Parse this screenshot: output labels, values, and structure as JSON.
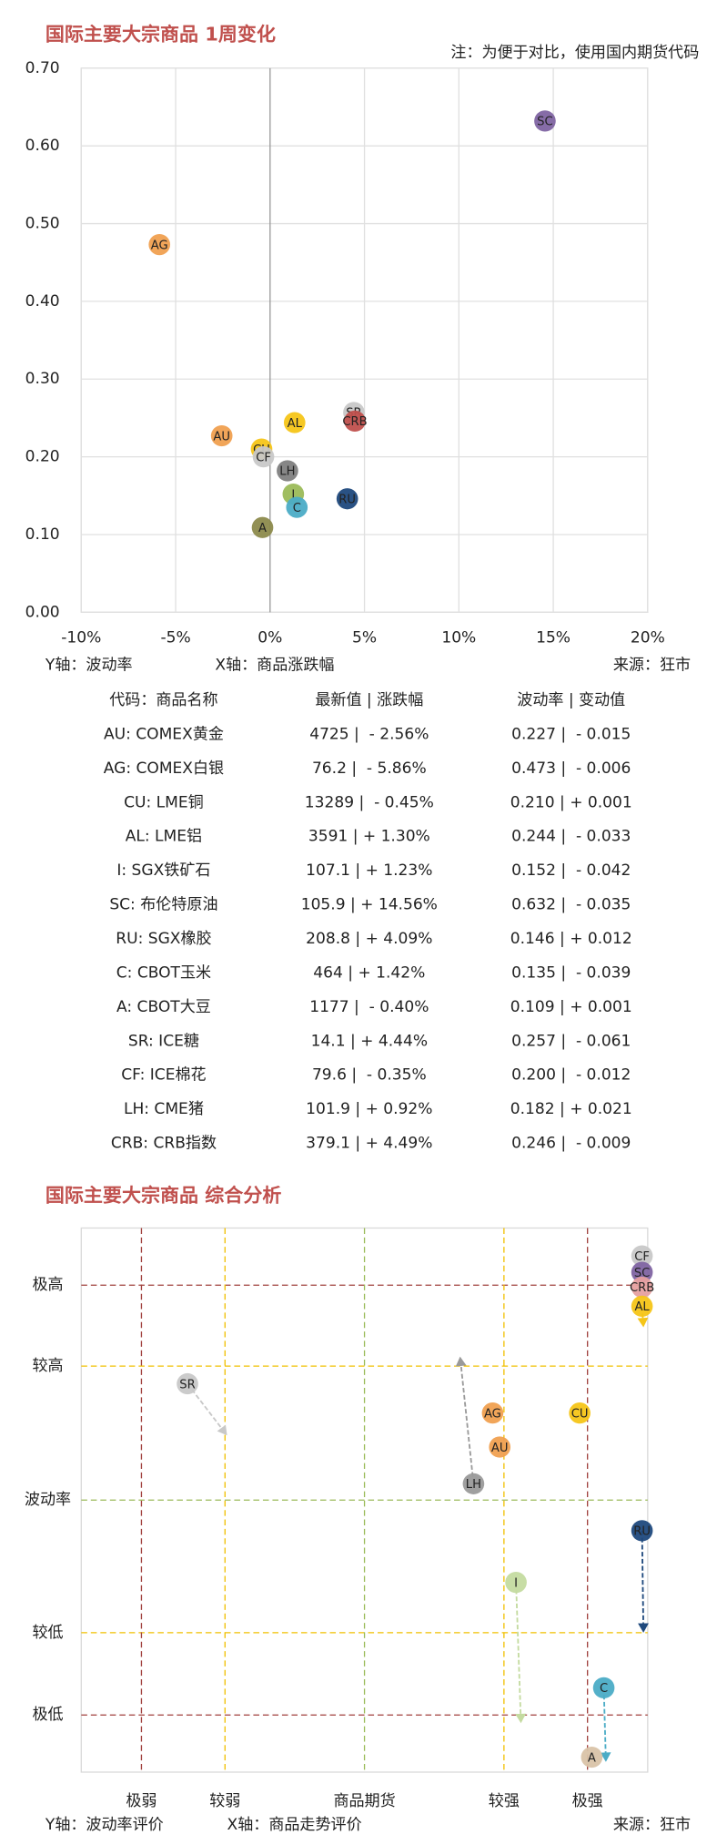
{
  "chart_data": [
    {
      "type": "scatter",
      "title": "国际主要大宗商品 1周变化",
      "note": "注：为便于对比，使用国内期货代码",
      "ylabel": "Y轴：波动率",
      "xlabel": "X轴：商品涨跌幅",
      "source": "来源：狂市",
      "labels": [
        "AU",
        "AG",
        "CU",
        "AL",
        "I",
        "SC",
        "RU",
        "C",
        "A",
        "SR",
        "CF",
        "LH",
        "CRB"
      ],
      "x": [
        -2.56,
        -5.86,
        -0.45,
        1.3,
        1.23,
        14.56,
        4.09,
        1.42,
        -0.4,
        4.44,
        -0.35,
        0.92,
        4.49
      ],
      "values": [
        0.227,
        0.473,
        0.21,
        0.244,
        0.152,
        0.632,
        0.146,
        0.135,
        0.109,
        0.257,
        0.2,
        0.182,
        0.246
      ],
      "colors": [
        "#f0a050",
        "#f0a050",
        "#f5c518",
        "#f5c518",
        "#9bbb59",
        "#8064a2",
        "#1f497d",
        "#4bacc6",
        "#8c8a4c",
        "#c8c8c8",
        "#c8c8c8",
        "#7f7f7f",
        "#c0504d"
      ],
      "xlim": [
        -10,
        20
      ],
      "xticks": [
        {
          "value": -10,
          "label": "-10%"
        },
        {
          "value": -5,
          "label": "-5%"
        },
        {
          "value": 0,
          "label": "0%"
        },
        {
          "value": 5,
          "label": "5%"
        },
        {
          "value": 10,
          "label": "10%"
        },
        {
          "value": 15,
          "label": "15%"
        },
        {
          "value": 20,
          "label": "20%"
        }
      ],
      "ylim": [
        0,
        0.7
      ],
      "yticks": [
        {
          "value": 0,
          "label": "0.00"
        },
        {
          "value": 0.1,
          "label": "0.10"
        },
        {
          "value": 0.2,
          "label": "0.20"
        },
        {
          "value": 0.3,
          "label": "0.30"
        },
        {
          "value": 0.4,
          "label": "0.40"
        },
        {
          "value": 0.5,
          "label": "0.50"
        },
        {
          "value": 0.6,
          "label": "0.60"
        },
        {
          "value": 0.7,
          "label": "0.70"
        }
      ],
      "grid": true
    },
    {
      "type": "scatter",
      "title": "国际主要大宗商品 综合分析",
      "ylabel": "Y轴：波动率评价",
      "xlabel": "X轴：商品走势评价",
      "source": "来源：狂市",
      "labels": [
        "CF",
        "SC",
        "CRB",
        "AL",
        "SR",
        "LH",
        "AG",
        "AU",
        "CU",
        "RU",
        "I",
        "C",
        "A"
      ],
      "x": [
        3.92,
        3.92,
        3.92,
        3.92,
        -2.5,
        1.54,
        1.81,
        1.91,
        3.04,
        3.92,
        2.14,
        3.38,
        3.21
      ],
      "values": [
        3.59,
        3.35,
        3.13,
        2.85,
        1.71,
        0.24,
        1.28,
        0.78,
        1.28,
        -0.45,
        -1.21,
        -2.76,
        -3.78
      ],
      "x_to": [
        null,
        null,
        null,
        3.94,
        -1.94,
        1.35,
        null,
        null,
        null,
        3.94,
        2.21,
        3.41,
        null
      ],
      "values_to": [
        null,
        null,
        null,
        2.54,
        0.95,
        2.11,
        null,
        null,
        null,
        -1.95,
        -3.28,
        -3.85,
        null
      ],
      "colors": [
        "#c8c8c8",
        "#8064a2",
        "#e6a0a0",
        "#f5c518",
        "#c8c8c8",
        "#9a9a9a",
        "#f0a050",
        "#f0a050",
        "#f5c518",
        "#1f497d",
        "#c4dba0",
        "#4bacc6",
        "#d9c3a8"
      ],
      "xlim": [
        -4,
        4
      ],
      "xticks": [
        {
          "value": -3.15,
          "label": "极弱"
        },
        {
          "value": -1.97,
          "label": "较弱"
        },
        {
          "value": 0,
          "label": "商品期货"
        },
        {
          "value": 1.97,
          "label": "较强"
        },
        {
          "value": 3.15,
          "label": "极强"
        }
      ],
      "ylim": [
        -4,
        4
      ],
      "yticks": [
        {
          "value": 3.16,
          "label": "极高"
        },
        {
          "value": 1.97,
          "label": "较高"
        },
        {
          "value": 0,
          "label": "波动率"
        },
        {
          "value": -1.95,
          "label": "较低"
        },
        {
          "value": -3.16,
          "label": "极低"
        }
      ],
      "grid_colors": [
        "#a0403d",
        "#f0c000",
        "#9bbb59",
        "#f0c000",
        "#a0403d"
      ]
    }
  ],
  "table": {
    "header": [
      "代码：商品名称",
      "最新值 | 涨跌幅",
      "波动率 | 变动值"
    ],
    "rows": [
      [
        "AU: COMEX黄金",
        "4725 |  - 2.56%",
        "0.227 |  - 0.015"
      ],
      [
        "AG: COMEX白银",
        "76.2 |  - 5.86%",
        "0.473 |  - 0.006"
      ],
      [
        "CU: LME铜",
        "13289 |  - 0.45%",
        "0.210 | + 0.001"
      ],
      [
        "AL: LME铝",
        "3591 | + 1.30%",
        "0.244 |  - 0.033"
      ],
      [
        "I: SGX铁矿石",
        "107.1 | + 1.23%",
        "0.152 |  - 0.042"
      ],
      [
        "SC: 布伦特原油",
        "105.9 | + 14.56%",
        "0.632 |  - 0.035"
      ],
      [
        "RU: SGX橡胶",
        "208.8 | + 4.09%",
        "0.146 | + 0.012"
      ],
      [
        "C: CBOT玉米",
        "464 | + 1.42%",
        "0.135 |  - 0.039"
      ],
      [
        "A: CBOT大豆",
        "1177 |  - 0.40%",
        "0.109 | + 0.001"
      ],
      [
        "SR: ICE糖",
        "14.1 | + 4.44%",
        "0.257 |  - 0.061"
      ],
      [
        "CF: ICE棉花",
        "79.6 |  - 0.35%",
        "0.200 |  - 0.012"
      ],
      [
        "LH: CME猪",
        "101.9 | + 0.92%",
        "0.182 | + 0.021"
      ],
      [
        "CRB: CRB指数",
        "379.1 | + 4.49%",
        "0.246 |  - 0.009"
      ]
    ]
  }
}
